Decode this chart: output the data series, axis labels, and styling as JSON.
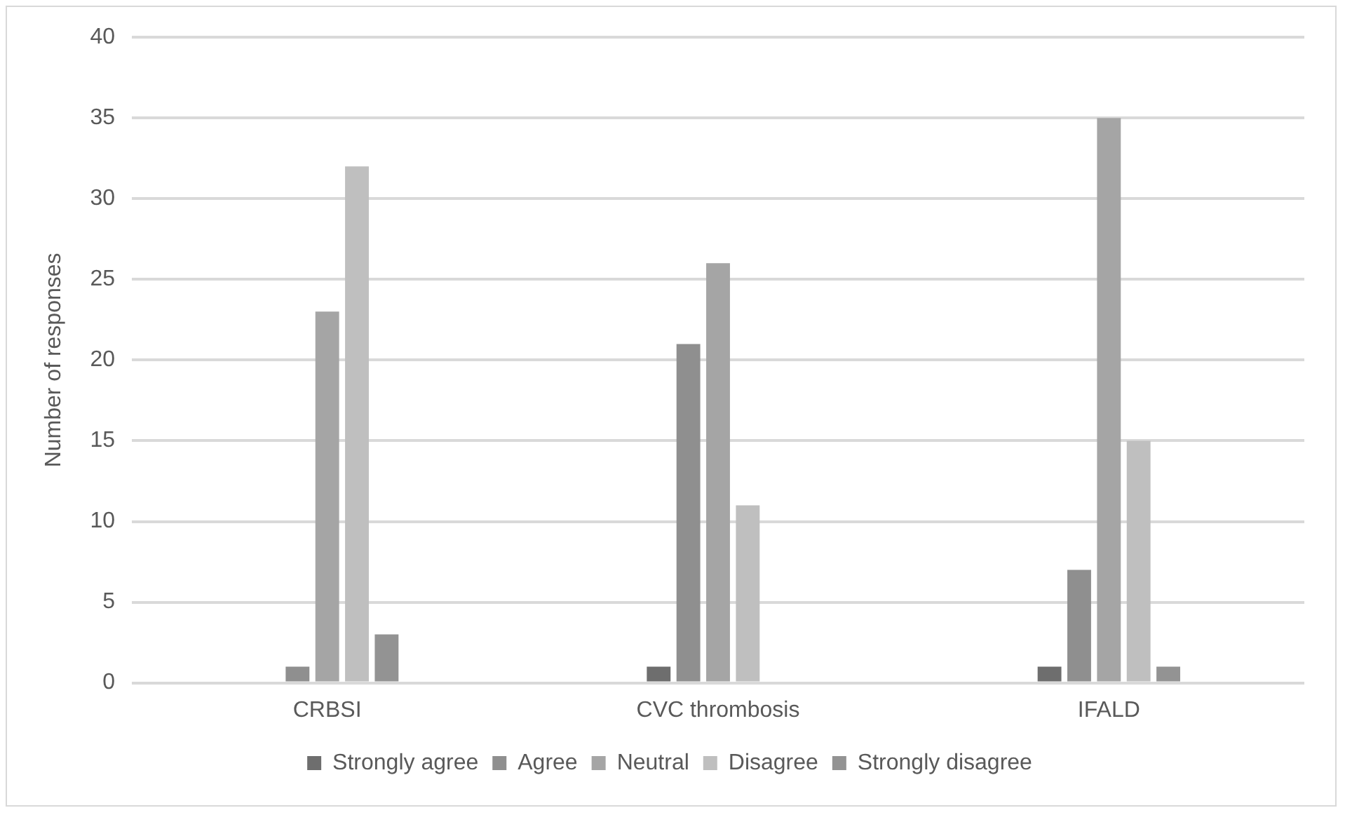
{
  "chart_data": {
    "type": "bar",
    "ylabel": "Number of responses",
    "categories": [
      "CRBSI",
      "CVC thrombosis",
      "IFALD"
    ],
    "series": [
      {
        "name": "Strongly agree",
        "color": "#6e6e6e",
        "values": [
          0,
          1,
          1
        ]
      },
      {
        "name": "Agree",
        "color": "#8f8f8f",
        "values": [
          1,
          21,
          7
        ]
      },
      {
        "name": "Neutral",
        "color": "#a5a5a5",
        "values": [
          23,
          26,
          35
        ]
      },
      {
        "name": "Disagree",
        "color": "#bfbfbf",
        "values": [
          32,
          11,
          15
        ]
      },
      {
        "name": "Strongly disagree",
        "color": "#939393",
        "values": [
          3,
          0,
          1
        ]
      }
    ],
    "ylim": [
      0,
      40
    ],
    "yticks": [
      0,
      5,
      10,
      15,
      20,
      25,
      30,
      35,
      40
    ],
    "grid": "y",
    "legend": "bottom"
  }
}
